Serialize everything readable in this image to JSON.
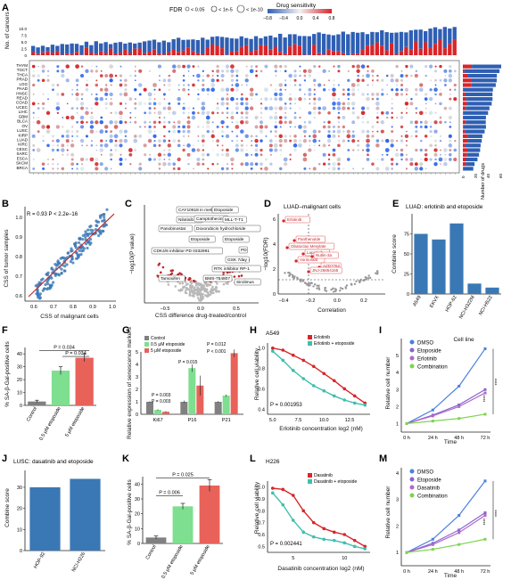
{
  "panels": {
    "A": {
      "label": "A",
      "legend": {
        "fdr_title": "FDR",
        "fdr_items": [
          "< 0.05",
          "< 1e-5",
          "< 1e-10"
        ],
        "sens_title": "Drug sensitivity",
        "sens_ticks": [
          "−0.8",
          "−0.4",
          "0.0",
          "0.4",
          "0.8"
        ]
      },
      "cancers": [
        "THYM",
        "TGCT",
        "THCA",
        "PRAD",
        "LGG",
        "PAAD",
        "HNSC",
        "READ",
        "COAD",
        "UCEC",
        "LIHC",
        "GBM",
        "BLCA",
        "OV",
        "LUSC",
        "KIRP",
        "LUAD",
        "KIRC",
        "CESC",
        "SARC",
        "ESCA",
        "SKCM",
        "BRCA"
      ],
      "ylabel_top": "No. of cancers",
      "top_ticks": [
        "0",
        "2.5",
        "5.0",
        "7.5",
        "10.0"
      ],
      "right_xlabel": "Number of drugs",
      "right_ticks": [
        "0",
        "20",
        "40",
        "60"
      ]
    },
    "B": {
      "label": "B",
      "annotation": "R = 0.93  P < 2.2e−16",
      "xlabel": "CSS of malignant cells",
      "ylabel": "CSS of tumor samples",
      "xticks": [
        "0.6",
        "0.7",
        "0.8",
        "0.9",
        "1.0"
      ],
      "yticks": [
        "0.6",
        "0.7",
        "0.8",
        "0.9",
        "1.0"
      ]
    },
    "C": {
      "label": "C",
      "xlabel": "CSS difference drug-treated/control",
      "ylabel": "−log10(P value)",
      "xticks": [
        "−0.5",
        "0.0",
        "0.5"
      ],
      "callouts": [
        "CAY10618 in methanol",
        "Etoposide",
        "Nilotinib",
        "Camptothecin",
        "MLL-T-T1",
        "Panobinostat",
        "Doxorubicin hydrochloride",
        "Etoposide",
        "Etoposide",
        "PD",
        "CDK4/6 inhibitor PD 0332991",
        "GSK 7day",
        "RTK inhibitor RP-1",
        "Tamoxifen",
        "BMS-754807",
        "Sirolimus"
      ]
    },
    "D": {
      "label": "D",
      "title": "LUAD–malignant cells",
      "xlabel": "Correlation",
      "ylabel": "−log10(FDR)",
      "xticks": [
        "−0.4",
        "−0.2",
        "0.0",
        "0.2"
      ],
      "yticks": [
        "0",
        "2",
        "4",
        "6"
      ],
      "callouts": [
        "Erlotinib",
        "Panthenolde",
        "Obatoclax Mesylate",
        "Lapatinib",
        "Vorinostat",
        "Nutlin-3a",
        "AZD7762",
        "JNJ-26854165"
      ]
    },
    "E": {
      "label": "E",
      "title": "LUAD: erlotinib and etoposide",
      "ylabel": "Combine score",
      "xlabel": "Cell line",
      "yticks": [
        "0",
        "25",
        "50",
        "75"
      ]
    },
    "F": {
      "label": "F",
      "ylabel": "% SA-β-Gal-positive cells",
      "p1": "P = 0.034",
      "p2": "P = 0.034",
      "yticks": [
        "0",
        "10",
        "20",
        "30",
        "40"
      ]
    },
    "G": {
      "label": "G",
      "ylabel": "Relative expression of senescence markers",
      "legend": [
        "Control",
        "0.5 μM etoposide",
        "5 μM etoposide"
      ],
      "pvals": [
        "P = 0.003",
        "P = 0.003",
        "P = 0.015",
        "P = 0.012",
        "P < 0.001"
      ],
      "yticks": [
        "0",
        "1",
        "2",
        "3",
        "4",
        "5"
      ]
    },
    "H": {
      "label": "H",
      "title": "A549",
      "legend": [
        "Erlotinib",
        "Erlotinib + etoposide"
      ],
      "pval": "P = 0.001953",
      "xlabel": "Erlotinib concentration log2 (nM)",
      "ylabel": "Relative cell viability",
      "xticks": [
        "5.0",
        "7.5",
        "10.0",
        "12.5"
      ],
      "yticks": [
        "0.4",
        "0.6",
        "0.8",
        "1.0"
      ]
    },
    "I": {
      "label": "I",
      "legend": [
        "DMSO",
        "Etoposide",
        "Erlotinib",
        "Combination"
      ],
      "xlabel": "Time",
      "ylabel": "Relative cell number",
      "xticks": [
        "0 h",
        "24 h",
        "48 h",
        "72 h"
      ],
      "yticks": [
        "1",
        "2",
        "3",
        "4",
        "5"
      ],
      "stars": [
        "****",
        "****"
      ]
    },
    "J": {
      "label": "J",
      "title": "LUSC: dasatinib and etoposide",
      "ylabel": "Combine score",
      "yticks": [
        "0",
        "10",
        "20",
        "30"
      ]
    },
    "K": {
      "label": "K",
      "ylabel": "% SA-β-Gal-positive cells",
      "p1": "P = 0.006",
      "p2": "P = 0.025",
      "yticks": [
        "0",
        "10",
        "20",
        "30",
        "40"
      ]
    },
    "L": {
      "label": "L",
      "title": "H226",
      "legend": [
        "Dasatinib",
        "Dasatinib + etoposide"
      ],
      "pval": "P = 0.002441",
      "xlabel": "Dasatinib concentration log2 (nM)",
      "ylabel": "Relative cell viability",
      "xticks": [
        "5",
        "10"
      ],
      "yticks": [
        "0.5",
        "0.6",
        "0.7",
        "0.8",
        "0.9",
        "1.0"
      ]
    },
    "M": {
      "label": "M",
      "legend": [
        "DMSO",
        "Etoposide",
        "Dasatinib",
        "Combination"
      ],
      "xlabel": "Time",
      "ylabel": "Relative cell number",
      "xticks": [
        "0 h",
        "24 h",
        "48 h",
        "72 h"
      ],
      "yticks": [
        "1",
        "2",
        "3",
        "4"
      ],
      "stars": [
        "****",
        "****"
      ]
    }
  },
  "chart_data": [
    {
      "panel": "E",
      "type": "bar",
      "categories": [
        "A549",
        "EKVX",
        "HOP-62",
        "NCI-H322M",
        "NCI-H522"
      ],
      "values": [
        75,
        68,
        88,
        13,
        8
      ],
      "ylabel": "Combine score",
      "xlabel": "Cell line",
      "ylim": [
        0,
        100
      ],
      "color": "#3a78b5"
    },
    {
      "panel": "F",
      "type": "bar",
      "categories": [
        "Control",
        "0.5 μM etoposide",
        "5 μM etoposide"
      ],
      "values": [
        3,
        27,
        37
      ],
      "errors": [
        1,
        3,
        3
      ],
      "ylim": [
        0,
        45
      ],
      "colors": [
        "#808080",
        "#7ddf8f",
        "#e8625a"
      ]
    },
    {
      "panel": "G",
      "type": "bar",
      "categories": [
        "Ki67",
        "P16",
        "P21"
      ],
      "series": [
        {
          "name": "Control",
          "values": [
            1,
            1,
            1
          ]
        },
        {
          "name": "0.5 μM etoposide",
          "values": [
            0.35,
            3.7,
            1.5
          ]
        },
        {
          "name": "5 μM etoposide",
          "values": [
            0.2,
            2.3,
            4.9
          ]
        }
      ],
      "errors": [
        [
          0.05,
          0.1,
          0.05
        ],
        [
          0.05,
          0.3,
          0.1
        ],
        [
          0.05,
          0.8,
          0.3
        ]
      ],
      "ylim": [
        0,
        5
      ]
    },
    {
      "panel": "H",
      "type": "line",
      "series": [
        {
          "name": "Erlotinib",
          "x": [
            5,
            6,
            7,
            8,
            9,
            10,
            11,
            12,
            13,
            14
          ],
          "y": [
            1.0,
            0.98,
            0.93,
            0.88,
            0.82,
            0.75,
            0.68,
            0.6,
            0.53,
            0.46
          ]
        },
        {
          "name": "Erlotinib + etoposide",
          "x": [
            5,
            6,
            7,
            8,
            9,
            10,
            11,
            12,
            13,
            14
          ],
          "y": [
            0.97,
            0.88,
            0.78,
            0.7,
            0.63,
            0.58,
            0.53,
            0.49,
            0.46,
            0.44
          ]
        }
      ],
      "xlim": [
        4.5,
        14.5
      ],
      "ylim": [
        0.35,
        1.05
      ]
    },
    {
      "panel": "I",
      "type": "line",
      "x": [
        "0 h",
        "24 h",
        "48 h",
        "72 h"
      ],
      "series": [
        {
          "name": "DMSO",
          "values": [
            1,
            1.8,
            3.2,
            5.4
          ]
        },
        {
          "name": "Etoposide",
          "values": [
            1,
            1.5,
            2.1,
            3.0
          ]
        },
        {
          "name": "Erlotinib",
          "values": [
            1,
            1.45,
            2.0,
            2.8
          ]
        },
        {
          "name": "Combination",
          "values": [
            1,
            1.15,
            1.3,
            1.55
          ]
        }
      ],
      "ylim": [
        0.5,
        6
      ]
    },
    {
      "panel": "J",
      "type": "bar",
      "categories": [
        "HOP-92",
        "NCI-H226"
      ],
      "values": [
        30,
        34
      ],
      "ylim": [
        0,
        38
      ],
      "color": "#3a78b5"
    },
    {
      "panel": "K",
      "type": "bar",
      "categories": [
        "Control",
        "0.5 μM etoposide",
        "5 μM etoposide"
      ],
      "values": [
        4,
        25,
        39
      ],
      "errors": [
        1,
        2,
        4
      ],
      "ylim": [
        0,
        45
      ],
      "colors": [
        "#808080",
        "#7ddf8f",
        "#e8625a"
      ]
    },
    {
      "panel": "L",
      "type": "line",
      "series": [
        {
          "name": "Dasatinib",
          "x": [
            3,
            4,
            5,
            6,
            7,
            8,
            9,
            10,
            11,
            12
          ],
          "y": [
            0.99,
            0.98,
            0.93,
            0.8,
            0.7,
            0.65,
            0.62,
            0.6,
            0.55,
            0.5
          ]
        },
        {
          "name": "Dasatinib + etoposide",
          "x": [
            3,
            4,
            5,
            6,
            7,
            8,
            9,
            10,
            11,
            12
          ],
          "y": [
            0.95,
            0.85,
            0.72,
            0.62,
            0.58,
            0.56,
            0.55,
            0.53,
            0.5,
            0.48
          ]
        }
      ],
      "xlim": [
        2.5,
        12.5
      ],
      "ylim": [
        0.45,
        1.05
      ]
    },
    {
      "panel": "M",
      "type": "line",
      "x": [
        "0 h",
        "24 h",
        "48 h",
        "72 h"
      ],
      "series": [
        {
          "name": "DMSO",
          "values": [
            1,
            1.5,
            2.4,
            3.7
          ]
        },
        {
          "name": "Etoposide",
          "values": [
            1,
            1.35,
            1.85,
            2.5
          ]
        },
        {
          "name": "Dasatinib",
          "values": [
            1,
            1.3,
            1.75,
            2.4
          ]
        },
        {
          "name": "Combination",
          "values": [
            1,
            1.12,
            1.3,
            1.5
          ]
        }
      ],
      "ylim": [
        0.5,
        4.2
      ]
    }
  ]
}
